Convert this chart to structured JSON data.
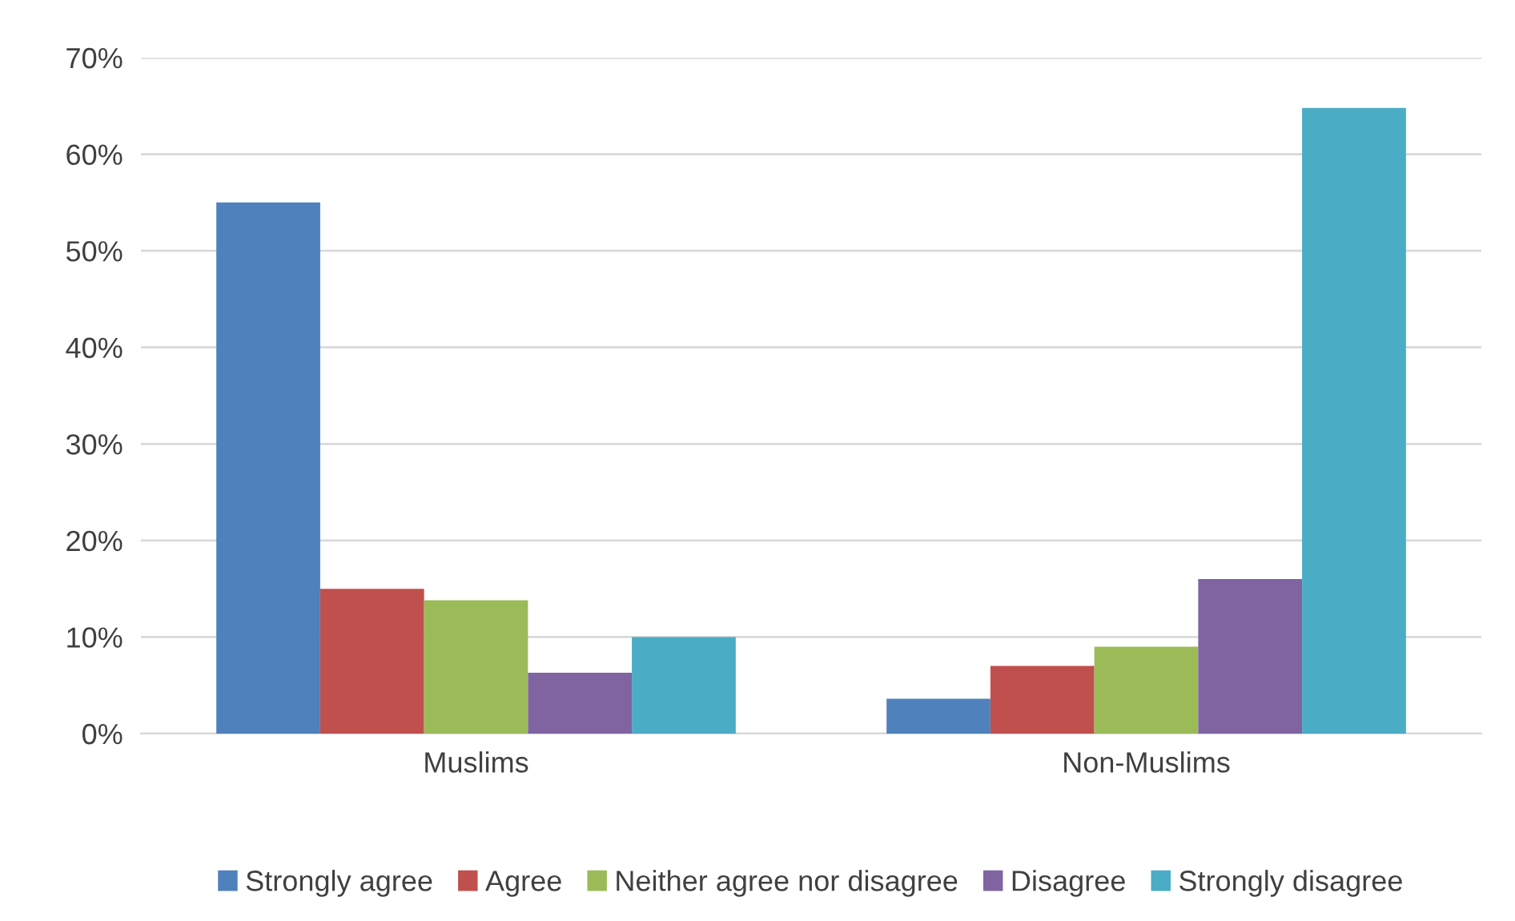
{
  "chart_data": {
    "type": "bar",
    "categories": [
      "Muslims",
      "Non-Muslims"
    ],
    "series": [
      {
        "name": "Strongly agree",
        "color": "#4f81bd",
        "values": [
          55,
          3.6
        ]
      },
      {
        "name": "Agree",
        "color": "#c0504d",
        "values": [
          15,
          7
        ]
      },
      {
        "name": "Neither agree nor disagree",
        "color": "#9bbb59",
        "values": [
          13.8,
          9
        ]
      },
      {
        "name": "Disagree",
        "color": "#8064a2",
        "values": [
          6.3,
          16
        ]
      },
      {
        "name": "Strongly disagree",
        "color": "#4bacc6",
        "values": [
          10,
          64.8
        ]
      }
    ],
    "ylim": [
      0,
      70
    ],
    "yticks": [
      {
        "value": 0,
        "label": "0%"
      },
      {
        "value": 10,
        "label": "10%"
      },
      {
        "value": 20,
        "label": "20%"
      },
      {
        "value": 30,
        "label": "30%"
      },
      {
        "value": 40,
        "label": "40%"
      },
      {
        "value": 50,
        "label": "50%"
      },
      {
        "value": 60,
        "label": "60%"
      },
      {
        "value": 70,
        "label": "70%"
      }
    ],
    "grid": "y",
    "legend": "bottom"
  }
}
